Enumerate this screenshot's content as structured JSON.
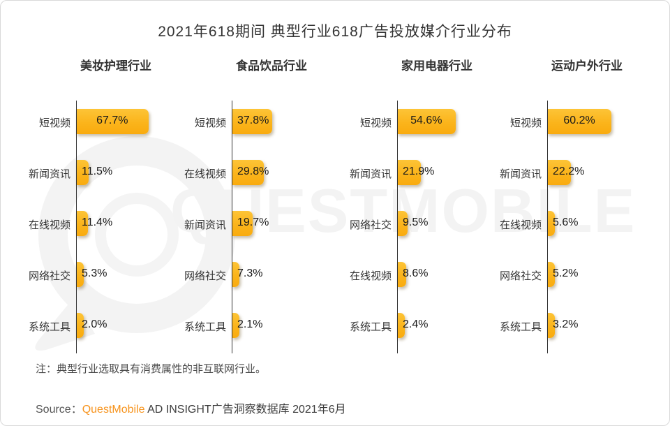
{
  "title": "2021年618期间 典型行业618广告投放媒介行业分布",
  "watermark": {
    "text": "QUESTMOBILE",
    "logo": "questmobile-bubble-logo",
    "color": "#f3f3f3"
  },
  "note": "注：典型行业选取具有消费属性的非互联网行业。",
  "source": {
    "prefix": "Source：",
    "brand": "QuestMobile",
    "suffix": " AD INSIGHT广告洞察数据库 2021年6月"
  },
  "colors": {
    "bar": "#fbb41b",
    "bar_gradient_top": "#fdc437",
    "bar_gradient_bottom": "#f9ab0e",
    "axis": "#333333",
    "brand_orange": "#f7941e",
    "text": "#333333",
    "watermark": "#f3f3f3"
  },
  "chart_data": {
    "type": "bar",
    "orientation": "horizontal",
    "unit": "%",
    "title": "2021年618期间 典型行业618广告投放媒介行业分布",
    "value_axis_hidden": true,
    "grid": false,
    "groups": [
      {
        "industry": "美妆护理行业",
        "categories": [
          "短视频",
          "新闻资讯",
          "在线视频",
          "网络社交",
          "系统工具"
        ],
        "values": [
          67.7,
          11.5,
          11.4,
          5.3,
          2.0
        ],
        "labels": [
          "67.7%",
          "11.5%",
          "11.4%",
          "5.3%",
          "2.0%"
        ]
      },
      {
        "industry": "食品饮品行业",
        "categories": [
          "短视频",
          "在线视频",
          "新闻资讯",
          "网络社交",
          "系统工具"
        ],
        "values": [
          37.8,
          29.8,
          19.7,
          7.3,
          2.1
        ],
        "labels": [
          "37.8%",
          "29.8%",
          "19.7%",
          "7.3%",
          "2.1%"
        ]
      },
      {
        "industry": "家用电器行业",
        "categories": [
          "短视频",
          "新闻资讯",
          "网络社交",
          "在线视频",
          "系统工具"
        ],
        "values": [
          54.6,
          21.9,
          9.5,
          8.6,
          2.4
        ],
        "labels": [
          "54.6%",
          "21.9%",
          "9.5%",
          "8.6%",
          "2.4%"
        ]
      },
      {
        "industry": "运动户外行业",
        "categories": [
          "短视频",
          "新闻资讯",
          "在线视频",
          "网络社交",
          "系统工具"
        ],
        "values": [
          60.2,
          22.2,
          5.6,
          5.2,
          3.2
        ],
        "labels": [
          "60.2%",
          "22.2%",
          "5.6%",
          "5.2%",
          "3.2%"
        ]
      }
    ]
  }
}
